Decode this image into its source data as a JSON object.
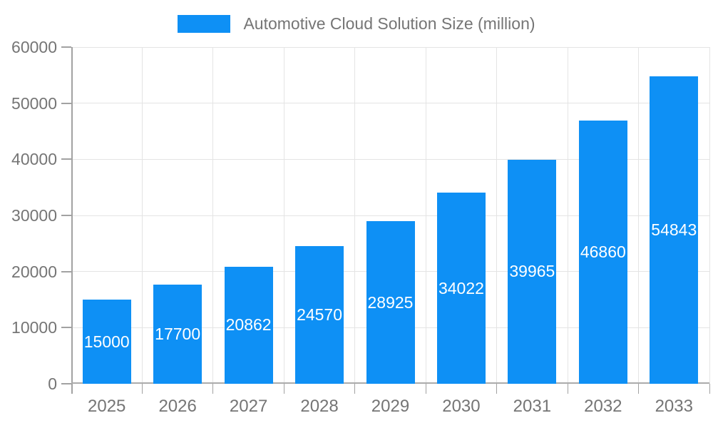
{
  "legend": {
    "label": "Automotive Cloud Solution Size (million)"
  },
  "chart_data": {
    "type": "bar",
    "title": "Automotive Cloud Solution Size (million)",
    "categories": [
      "2025",
      "2026",
      "2027",
      "2028",
      "2029",
      "2030",
      "2031",
      "2032",
      "2033"
    ],
    "values": [
      15000,
      17700,
      20862,
      24570,
      28925,
      34022,
      39965,
      46860,
      54843
    ],
    "xlabel": "",
    "ylabel": "",
    "ylim": [
      0,
      60000
    ],
    "yticks": [
      0,
      10000,
      20000,
      30000,
      40000,
      50000,
      60000
    ],
    "grid": true,
    "legend_position": "top",
    "value_labels": "inside-center"
  },
  "colors": {
    "bar": "#0e90f5",
    "grid": "#e4e4e4",
    "axis": "#a2a2a2",
    "text": "#757575",
    "value_label": "#ffffff",
    "background": "#ffffff"
  }
}
